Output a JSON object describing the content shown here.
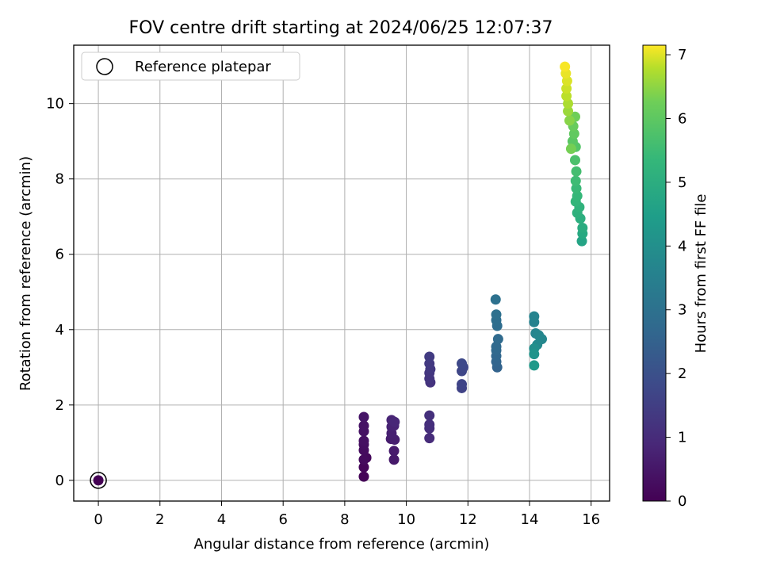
{
  "chart_data": {
    "type": "scatter",
    "title": "FOV centre drift starting at 2024/06/25 12:07:37",
    "xlabel": "Angular distance from reference (arcmin)",
    "ylabel": "Rotation from reference (arcmin)",
    "xlim": [
      -0.8,
      16.6
    ],
    "ylim": [
      -0.55,
      11.55
    ],
    "xticks": [
      0,
      2,
      4,
      6,
      8,
      10,
      12,
      14,
      16
    ],
    "yticks": [
      0,
      2,
      4,
      6,
      8,
      10
    ],
    "grid": true,
    "legend": {
      "placement": "upper-left",
      "entries": [
        "Reference platepar"
      ]
    },
    "colorbar": {
      "label": "Hours from first FF file",
      "range": [
        0,
        7.15
      ],
      "ticks": [
        0,
        1,
        2,
        3,
        4,
        5,
        6,
        7
      ],
      "colormap": "viridis"
    },
    "reference_point": {
      "x": 0,
      "y": 0
    },
    "series": [
      {
        "points": [
          {
            "x": 0.0,
            "y": 0.0,
            "t": 0.0
          },
          {
            "x": 8.62,
            "y": 0.1,
            "t": 0.08
          },
          {
            "x": 8.62,
            "y": 0.35,
            "t": 0.12
          },
          {
            "x": 8.7,
            "y": 0.6,
            "t": 0.18
          },
          {
            "x": 8.62,
            "y": 0.55,
            "t": 0.22
          },
          {
            "x": 8.62,
            "y": 0.8,
            "t": 0.26
          },
          {
            "x": 8.62,
            "y": 0.95,
            "t": 0.3
          },
          {
            "x": 8.62,
            "y": 1.05,
            "t": 0.34
          },
          {
            "x": 8.62,
            "y": 1.3,
            "t": 0.38
          },
          {
            "x": 8.62,
            "y": 1.45,
            "t": 0.42
          },
          {
            "x": 8.62,
            "y": 1.68,
            "t": 0.46
          },
          {
            "x": 9.6,
            "y": 0.55,
            "t": 0.55
          },
          {
            "x": 9.6,
            "y": 0.78,
            "t": 0.6
          },
          {
            "x": 9.5,
            "y": 1.1,
            "t": 0.65
          },
          {
            "x": 9.62,
            "y": 1.08,
            "t": 0.68
          },
          {
            "x": 9.52,
            "y": 1.25,
            "t": 0.72
          },
          {
            "x": 9.52,
            "y": 1.42,
            "t": 0.76
          },
          {
            "x": 9.6,
            "y": 1.45,
            "t": 0.8
          },
          {
            "x": 9.52,
            "y": 1.6,
            "t": 0.83
          },
          {
            "x": 9.62,
            "y": 1.55,
            "t": 0.87
          },
          {
            "x": 10.75,
            "y": 1.12,
            "t": 1.0
          },
          {
            "x": 10.75,
            "y": 1.38,
            "t": 1.05
          },
          {
            "x": 10.75,
            "y": 1.48,
            "t": 1.08
          },
          {
            "x": 10.75,
            "y": 1.72,
            "t": 1.12
          },
          {
            "x": 10.78,
            "y": 2.6,
            "t": 1.2
          },
          {
            "x": 10.75,
            "y": 2.7,
            "t": 1.24
          },
          {
            "x": 10.75,
            "y": 2.85,
            "t": 1.28
          },
          {
            "x": 10.78,
            "y": 2.95,
            "t": 1.32
          },
          {
            "x": 10.75,
            "y": 3.1,
            "t": 1.36
          },
          {
            "x": 10.75,
            "y": 3.28,
            "t": 1.4
          },
          {
            "x": 11.8,
            "y": 2.45,
            "t": 1.62
          },
          {
            "x": 11.8,
            "y": 2.55,
            "t": 1.66
          },
          {
            "x": 11.8,
            "y": 2.9,
            "t": 1.7
          },
          {
            "x": 11.85,
            "y": 3.0,
            "t": 1.74
          },
          {
            "x": 11.8,
            "y": 3.1,
            "t": 1.78
          },
          {
            "x": 12.95,
            "y": 3.0,
            "t": 2.55
          },
          {
            "x": 12.92,
            "y": 3.15,
            "t": 2.6
          },
          {
            "x": 12.92,
            "y": 3.3,
            "t": 2.65
          },
          {
            "x": 12.92,
            "y": 3.45,
            "t": 2.7
          },
          {
            "x": 12.92,
            "y": 3.55,
            "t": 2.75
          },
          {
            "x": 12.98,
            "y": 3.75,
            "t": 2.8
          },
          {
            "x": 12.95,
            "y": 4.1,
            "t": 2.85
          },
          {
            "x": 12.92,
            "y": 4.25,
            "t": 2.9
          },
          {
            "x": 12.92,
            "y": 4.4,
            "t": 2.95
          },
          {
            "x": 12.9,
            "y": 4.8,
            "t": 3.0
          },
          {
            "x": 14.15,
            "y": 4.2,
            "t": 3.55
          },
          {
            "x": 14.15,
            "y": 4.35,
            "t": 3.6
          },
          {
            "x": 14.2,
            "y": 3.9,
            "t": 3.65
          },
          {
            "x": 14.3,
            "y": 3.85,
            "t": 3.7
          },
          {
            "x": 14.4,
            "y": 3.75,
            "t": 3.75
          },
          {
            "x": 14.25,
            "y": 3.6,
            "t": 3.8
          },
          {
            "x": 14.15,
            "y": 3.5,
            "t": 4.0
          },
          {
            "x": 14.15,
            "y": 3.35,
            "t": 4.15
          },
          {
            "x": 14.15,
            "y": 3.05,
            "t": 4.3
          },
          {
            "x": 15.7,
            "y": 6.35,
            "t": 4.7
          },
          {
            "x": 15.72,
            "y": 6.55,
            "t": 4.85
          },
          {
            "x": 15.72,
            "y": 6.7,
            "t": 4.95
          },
          {
            "x": 15.65,
            "y": 6.95,
            "t": 5.05
          },
          {
            "x": 15.55,
            "y": 7.1,
            "t": 5.12
          },
          {
            "x": 15.62,
            "y": 7.25,
            "t": 5.2
          },
          {
            "x": 15.5,
            "y": 7.4,
            "t": 5.28
          },
          {
            "x": 15.55,
            "y": 7.55,
            "t": 5.35
          },
          {
            "x": 15.52,
            "y": 7.75,
            "t": 5.42
          },
          {
            "x": 15.5,
            "y": 7.95,
            "t": 5.5
          },
          {
            "x": 15.52,
            "y": 8.2,
            "t": 5.6
          },
          {
            "x": 15.48,
            "y": 8.5,
            "t": 5.72
          },
          {
            "x": 15.5,
            "y": 8.85,
            "t": 5.85
          },
          {
            "x": 15.4,
            "y": 9.0,
            "t": 5.95
          },
          {
            "x": 15.45,
            "y": 9.2,
            "t": 6.05
          },
          {
            "x": 15.42,
            "y": 9.4,
            "t": 6.15
          },
          {
            "x": 15.48,
            "y": 9.65,
            "t": 6.25
          },
          {
            "x": 15.35,
            "y": 8.8,
            "t": 6.3
          },
          {
            "x": 15.3,
            "y": 9.55,
            "t": 6.45
          },
          {
            "x": 15.25,
            "y": 9.8,
            "t": 6.6
          },
          {
            "x": 15.25,
            "y": 10.0,
            "t": 6.72
          },
          {
            "x": 15.2,
            "y": 10.2,
            "t": 6.82
          },
          {
            "x": 15.2,
            "y": 10.4,
            "t": 6.9
          },
          {
            "x": 15.22,
            "y": 10.6,
            "t": 6.98
          },
          {
            "x": 15.18,
            "y": 10.8,
            "t": 7.05
          },
          {
            "x": 15.15,
            "y": 10.98,
            "t": 7.12
          }
        ]
      }
    ]
  }
}
